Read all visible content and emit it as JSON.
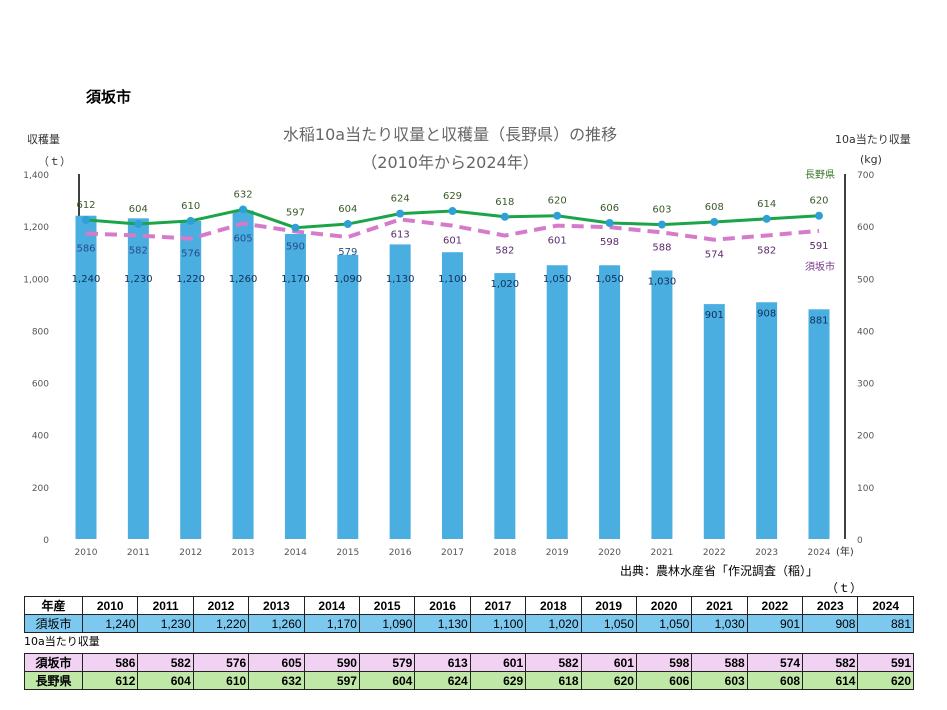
{
  "page_heading": "須坂市",
  "source_note": "出典：農林水産省「作況調査（稲）」",
  "chart_data": {
    "type": "bar+line",
    "title": "水稲10a当たり収量と収穫量（長野県）の推移",
    "subtitle": "（2010年から2024年）",
    "ylabel_left": "収穫量",
    "ylabel_left_unit": "（ｔ）",
    "ylabel_right": "10a当たり収量",
    "ylabel_right_unit": "(kg)",
    "xlabel_unit": "(年)",
    "ylim_left": [
      0,
      1400
    ],
    "ylim_right": [
      0,
      700
    ],
    "yticks_left": [
      "0",
      "200",
      "400",
      "600",
      "800",
      "1,000",
      "1,200",
      "1,400"
    ],
    "yticks_right": [
      "0",
      "100",
      "200",
      "300",
      "400",
      "500",
      "600",
      "700"
    ],
    "categories": [
      "2010",
      "2011",
      "2012",
      "2013",
      "2014",
      "2015",
      "2016",
      "2017",
      "2018",
      "2019",
      "2020",
      "2021",
      "2022",
      "2023",
      "2024"
    ],
    "grid": false,
    "series": [
      {
        "name": "須坂市",
        "kind": "bar",
        "axis": "left",
        "color": "#4aaee0",
        "values": [
          1240,
          1230,
          1220,
          1260,
          1170,
          1090,
          1130,
          1100,
          1020,
          1050,
          1050,
          1030,
          901,
          908,
          881
        ],
        "labels": [
          "1,240",
          "1,230",
          "1,220",
          "1,260",
          "1,170",
          "1,090",
          "1,130",
          "1,100",
          "1,020",
          "1,050",
          "1,050",
          "1,030",
          "901",
          "908",
          "881"
        ]
      },
      {
        "name": "長野県",
        "kind": "line",
        "axis": "right",
        "color": "#1ba548",
        "marker_color": "#2da0d5",
        "values": [
          612,
          604,
          610,
          632,
          597,
          604,
          624,
          629,
          618,
          620,
          606,
          603,
          608,
          614,
          620
        ]
      },
      {
        "name": "須坂市",
        "kind": "dashed-line",
        "axis": "right",
        "color": "#d67acb",
        "values": [
          586,
          582,
          576,
          605,
          590,
          579,
          613,
          601,
          582,
          601,
          598,
          588,
          574,
          582,
          591
        ]
      }
    ]
  },
  "table_harvest": {
    "unit": "（ｔ）",
    "header_label": "年産",
    "years": [
      "2010",
      "2011",
      "2012",
      "2013",
      "2014",
      "2015",
      "2016",
      "2017",
      "2018",
      "2019",
      "2020",
      "2021",
      "2022",
      "2023",
      "2024"
    ],
    "row_label": "須坂市",
    "values": [
      "1,240",
      "1,230",
      "1,220",
      "1,260",
      "1,170",
      "1,090",
      "1,130",
      "1,100",
      "1,020",
      "1,050",
      "1,050",
      "1,030",
      "901",
      "908",
      "881"
    ]
  },
  "table_yield": {
    "caption": "10a当たり収量",
    "rows": [
      {
        "label": "須坂市",
        "values": [
          "586",
          "582",
          "576",
          "605",
          "590",
          "579",
          "613",
          "601",
          "582",
          "601",
          "598",
          "588",
          "574",
          "582",
          "591"
        ]
      },
      {
        "label": "長野県",
        "values": [
          "612",
          "604",
          "610",
          "632",
          "597",
          "604",
          "624",
          "629",
          "618",
          "620",
          "606",
          "603",
          "608",
          "614",
          "620"
        ]
      }
    ]
  }
}
